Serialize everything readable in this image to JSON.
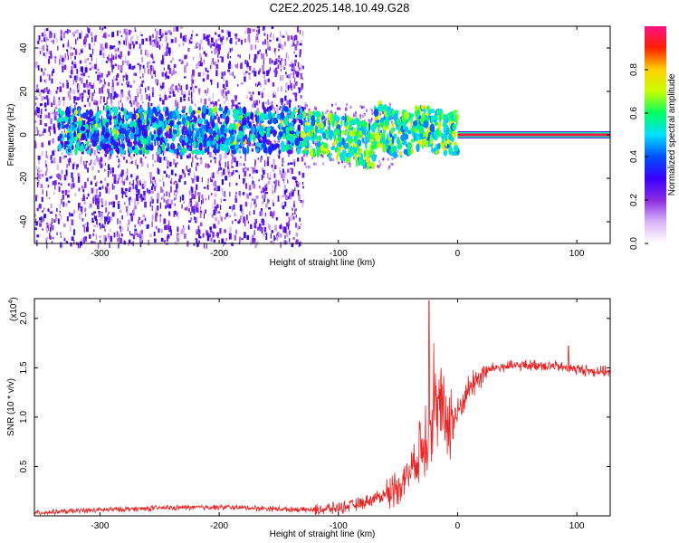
{
  "title": "C2E2.2025.148.10.49.G28",
  "chart_data": [
    {
      "type": "heatmap",
      "xlabel": "Height of straight line (km)",
      "ylabel": "Frequency (Hz)",
      "xlim": [
        -355,
        128
      ],
      "ylim": [
        -50,
        50
      ],
      "xticks": [
        "-300",
        "-200",
        "-100",
        "0",
        "100"
      ],
      "yticks": [
        "-40",
        "-20",
        "0",
        "20",
        "40"
      ],
      "colorbar": {
        "label": "Normalized spectral amplitude",
        "range": [
          0,
          1
        ],
        "ticks": [
          "0.0",
          "0.2",
          "0.4",
          "0.6",
          "0.8"
        ],
        "colors": [
          "#ffffff",
          "#d8b4f8",
          "#8a2be2",
          "#3a00ff",
          "#0050ff",
          "#00e0ff",
          "#00ff60",
          "#c8ff00",
          "#ffd000",
          "#ff2000",
          "#ff1088"
        ]
      },
      "features": {
        "scatter_region_x": [
          -355,
          -130
        ],
        "tone_start_x": 0,
        "tone_frequency": 0,
        "tone_amplitude": 0.95
      }
    },
    {
      "type": "line",
      "xlabel": "Height of straight line (km)",
      "ylabel": "SNR (10 * v/v)",
      "yscale_label": "(x10",
      "yscale_exp": "4",
      "xlim": [
        -355,
        128
      ],
      "ylim": [
        0,
        2.2
      ],
      "xticks": [
        "-300",
        "-200",
        "-100",
        "0",
        "100"
      ],
      "yticks": [
        "0.5",
        "1.0",
        "1.5",
        "2.0"
      ],
      "color": "#ee2222",
      "series": [
        {
          "x": [
            -355,
            -300,
            -250,
            -200,
            -150,
            -120,
            -100,
            -80,
            -60,
            -50,
            -40,
            -30,
            -25,
            -20,
            -15,
            -10,
            -5,
            0,
            10,
            20,
            30,
            50,
            70,
            90,
            110,
            128
          ],
          "values": [
            0.03,
            0.06,
            0.08,
            0.09,
            0.07,
            0.06,
            0.08,
            0.13,
            0.22,
            0.3,
            0.45,
            0.7,
            0.85,
            1.05,
            1.1,
            1.0,
            0.95,
            1.05,
            1.3,
            1.43,
            1.5,
            1.52,
            1.53,
            1.5,
            1.47,
            1.46
          ]
        }
      ],
      "peaks": [
        {
          "x": -24,
          "y": 2.18
        },
        {
          "x": -20,
          "y": 1.75
        },
        {
          "x": 93,
          "y": 1.72
        }
      ]
    }
  ]
}
